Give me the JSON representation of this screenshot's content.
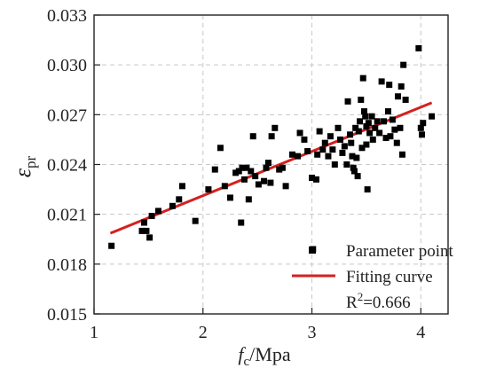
{
  "chart_data": {
    "type": "scatter",
    "xlabel_symbol": "f",
    "xlabel_sub": "c",
    "xlabel_unit": "/Mpa",
    "ylabel_symbol": "ε",
    "ylabel_sub": "pr",
    "xlim": [
      1,
      4.25
    ],
    "ylim": [
      0.015,
      0.033
    ],
    "xticks": [
      1,
      2,
      3,
      4
    ],
    "xtick_labels": [
      "1",
      "2",
      "3",
      "4"
    ],
    "yticks": [
      0.015,
      0.018,
      0.021,
      0.024,
      0.027,
      0.03,
      0.033
    ],
    "ytick_labels": [
      "0.015",
      "0.018",
      "0.021",
      "0.024",
      "0.027",
      "0.030",
      "0.033"
    ],
    "grid": true,
    "legend_position": "bottom-right",
    "colors": {
      "points": "#000000",
      "fit": "#d42020",
      "grid": "#c8c8c8"
    },
    "series": [
      {
        "name": "Parameter point",
        "kind": "scatter",
        "points": [
          [
            1.16,
            0.0191
          ],
          [
            1.44,
            0.02
          ],
          [
            1.46,
            0.0205
          ],
          [
            1.48,
            0.02
          ],
          [
            1.51,
            0.0196
          ],
          [
            1.53,
            0.0209
          ],
          [
            1.59,
            0.0212
          ],
          [
            1.72,
            0.0215
          ],
          [
            1.78,
            0.0219
          ],
          [
            1.81,
            0.0227
          ],
          [
            1.93,
            0.0206
          ],
          [
            2.05,
            0.0225
          ],
          [
            2.11,
            0.0237
          ],
          [
            2.16,
            0.025
          ],
          [
            2.2,
            0.0227
          ],
          [
            2.25,
            0.022
          ],
          [
            2.3,
            0.0235
          ],
          [
            2.33,
            0.0236
          ],
          [
            2.35,
            0.0205
          ],
          [
            2.36,
            0.0238
          ],
          [
            2.38,
            0.0231
          ],
          [
            2.4,
            0.0238
          ],
          [
            2.42,
            0.0219
          ],
          [
            2.44,
            0.0236
          ],
          [
            2.46,
            0.0257
          ],
          [
            2.48,
            0.0233
          ],
          [
            2.51,
            0.0228
          ],
          [
            2.56,
            0.023
          ],
          [
            2.58,
            0.0238
          ],
          [
            2.6,
            0.0241
          ],
          [
            2.62,
            0.0229
          ],
          [
            2.63,
            0.0257
          ],
          [
            2.66,
            0.0262
          ],
          [
            2.7,
            0.0237
          ],
          [
            2.73,
            0.0238
          ],
          [
            2.76,
            0.0227
          ],
          [
            2.82,
            0.0246
          ],
          [
            2.87,
            0.0245
          ],
          [
            2.89,
            0.0259
          ],
          [
            2.93,
            0.0255
          ],
          [
            2.96,
            0.0248
          ],
          [
            3.0,
            0.0232
          ],
          [
            3.01,
            0.0189
          ],
          [
            3.04,
            0.0231
          ],
          [
            3.05,
            0.0246
          ],
          [
            3.07,
            0.026
          ],
          [
            3.1,
            0.0249
          ],
          [
            3.12,
            0.0253
          ],
          [
            3.15,
            0.0245
          ],
          [
            3.17,
            0.0257
          ],
          [
            3.19,
            0.0249
          ],
          [
            3.21,
            0.024
          ],
          [
            3.24,
            0.0262
          ],
          [
            3.26,
            0.0255
          ],
          [
            3.28,
            0.0247
          ],
          [
            3.3,
            0.0251
          ],
          [
            3.32,
            0.024
          ],
          [
            3.33,
            0.0278
          ],
          [
            3.35,
            0.0258
          ],
          [
            3.36,
            0.0253
          ],
          [
            3.37,
            0.0245
          ],
          [
            3.38,
            0.0238
          ],
          [
            3.39,
            0.0236
          ],
          [
            3.4,
            0.0262
          ],
          [
            3.41,
            0.0244
          ],
          [
            3.42,
            0.0233
          ],
          [
            3.43,
            0.026
          ],
          [
            3.44,
            0.0266
          ],
          [
            3.45,
            0.0279
          ],
          [
            3.46,
            0.025
          ],
          [
            3.47,
            0.0292
          ],
          [
            3.48,
            0.0272
          ],
          [
            3.49,
            0.0269
          ],
          [
            3.5,
            0.0263
          ],
          [
            3.5,
            0.0252
          ],
          [
            3.51,
            0.0225
          ],
          [
            3.52,
            0.0265
          ],
          [
            3.53,
            0.0259
          ],
          [
            3.55,
            0.0269
          ],
          [
            3.56,
            0.0255
          ],
          [
            3.58,
            0.0262
          ],
          [
            3.6,
            0.0266
          ],
          [
            3.62,
            0.0259
          ],
          [
            3.64,
            0.029
          ],
          [
            3.66,
            0.0266
          ],
          [
            3.68,
            0.0256
          ],
          [
            3.7,
            0.0272
          ],
          [
            3.71,
            0.0288
          ],
          [
            3.72,
            0.0257
          ],
          [
            3.74,
            0.0267
          ],
          [
            3.76,
            0.0261
          ],
          [
            3.78,
            0.0253
          ],
          [
            3.79,
            0.0281
          ],
          [
            3.81,
            0.0262
          ],
          [
            3.82,
            0.0287
          ],
          [
            3.83,
            0.0246
          ],
          [
            3.84,
            0.03
          ],
          [
            3.86,
            0.0279
          ],
          [
            3.98,
            0.031
          ],
          [
            4.0,
            0.0262
          ],
          [
            4.01,
            0.0258
          ],
          [
            4.02,
            0.0265
          ],
          [
            4.1,
            0.0269
          ]
        ]
      },
      {
        "name": "Fitting curve",
        "kind": "line",
        "x": [
          1.15,
          4.1
        ],
        "y": [
          0.01986,
          0.02772
        ]
      }
    ],
    "annotation": {
      "base": "R",
      "sup": "2",
      "rest": "=0.666"
    }
  }
}
